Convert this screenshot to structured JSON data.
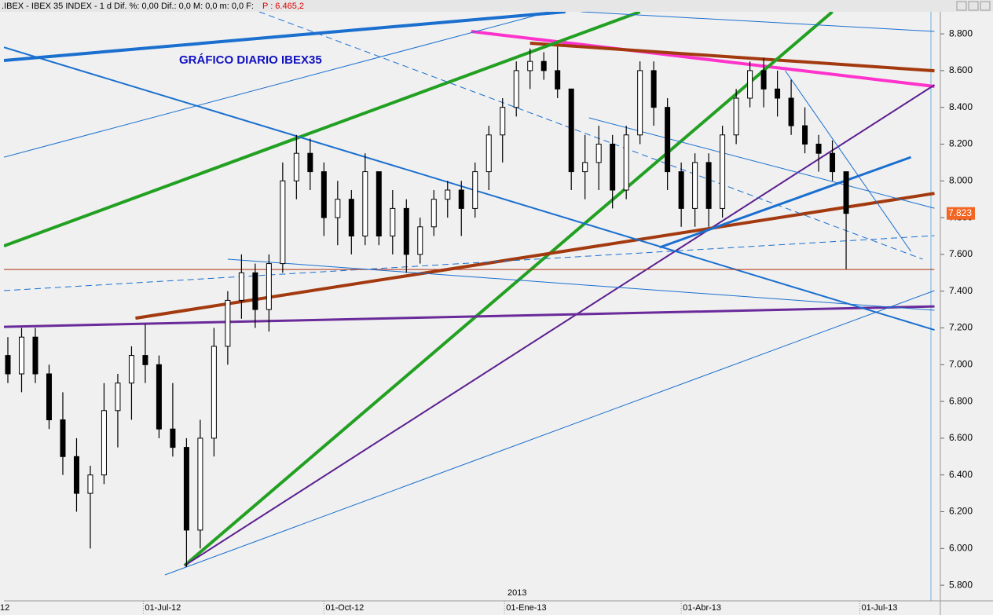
{
  "chart_data": {
    "type": "candlestick",
    "header": ".IBEX - IBEX 35 INDEX - 1 d Dif. %: 0,00 Dif.: 0,0 M: 0,0 m: 0,0 F:",
    "header_price": "P : 6.465,2",
    "title": "GRÁFICO DIARIO IBEX35",
    "year_label": "2013",
    "last_value_label": "7.823",
    "x": [
      "2012-04-23",
      "2012-04-30",
      "2012-05-07",
      "2012-05-14",
      "2012-05-21",
      "2012-05-28",
      "2012-06-04",
      "2012-06-11",
      "2012-06-18",
      "2012-06-25",
      "2012-07-02",
      "2012-07-09",
      "2012-07-16",
      "2012-07-23",
      "2012-07-30",
      "2012-08-06",
      "2012-08-13",
      "2012-08-20",
      "2012-08-27",
      "2012-09-03",
      "2012-09-10",
      "2012-09-17",
      "2012-09-24",
      "2012-10-01",
      "2012-10-08",
      "2012-10-15",
      "2012-10-22",
      "2012-10-29",
      "2012-11-05",
      "2012-11-12",
      "2012-11-19",
      "2012-11-26",
      "2012-12-03",
      "2012-12-10",
      "2012-12-17",
      "2012-12-24",
      "2012-12-31",
      "2013-01-07",
      "2013-01-14",
      "2013-01-21",
      "2013-01-28",
      "2013-02-04",
      "2013-02-11",
      "2013-02-18",
      "2013-02-25",
      "2013-03-04",
      "2013-03-11",
      "2013-03-18",
      "2013-03-25",
      "2013-04-01",
      "2013-04-08",
      "2013-04-15",
      "2013-04-22",
      "2013-04-29",
      "2013-05-06",
      "2013-05-13",
      "2013-05-20",
      "2013-05-27",
      "2013-06-03",
      "2013-06-10",
      "2013-06-17",
      "2013-06-24"
    ],
    "open": [
      7050,
      6950,
      7150,
      6950,
      6700,
      6500,
      6300,
      6400,
      6750,
      6900,
      7050,
      7000,
      6650,
      6550,
      6100,
      6600,
      7100,
      7350,
      7500,
      7300,
      7550,
      8000,
      8150,
      8050,
      7800,
      7900,
      7700,
      8050,
      7700,
      7850,
      7600,
      7750,
      7900,
      7950,
      7850,
      8050,
      8250,
      8400,
      8600,
      8650,
      8600,
      8500,
      8050,
      8100,
      8200,
      7950,
      8250,
      8600,
      8400,
      8050,
      7850,
      8100,
      7850,
      8250,
      8450,
      8600,
      8500,
      8450,
      8300,
      8200,
      8150,
      8050
    ],
    "high": [
      7150,
      7200,
      7200,
      7000,
      6850,
      6600,
      6450,
      6900,
      6950,
      7100,
      7220,
      7050,
      6900,
      6600,
      6700,
      7200,
      7400,
      7600,
      7550,
      7600,
      8100,
      8250,
      8230,
      8100,
      8000,
      7950,
      8150,
      8050,
      7950,
      7900,
      7800,
      7950,
      8000,
      8000,
      8100,
      8300,
      8450,
      8650,
      8720,
      8700,
      8730,
      8500,
      8250,
      8300,
      8250,
      8300,
      8650,
      8650,
      8450,
      8100,
      8150,
      8150,
      8300,
      8500,
      8650,
      8670,
      8600,
      8550,
      8400,
      8250,
      8220,
      8050
    ],
    "low": [
      6900,
      6850,
      6900,
      6650,
      6400,
      6200,
      6000,
      6350,
      6550,
      6700,
      6900,
      6600,
      6500,
      5900,
      6000,
      6500,
      7000,
      7250,
      7200,
      7180,
      7500,
      7900,
      7950,
      7700,
      7650,
      7600,
      7650,
      7650,
      7600,
      7500,
      7550,
      7700,
      7800,
      7700,
      7800,
      7950,
      8100,
      8350,
      8500,
      8550,
      8450,
      7950,
      7900,
      7950,
      7850,
      7900,
      8200,
      8300,
      7950,
      7750,
      7750,
      7750,
      7800,
      8200,
      8400,
      8400,
      8350,
      8250,
      8150,
      8050,
      8000,
      7520
    ],
    "close": [
      6950,
      7150,
      6950,
      6700,
      6500,
      6300,
      6400,
      6750,
      6900,
      7050,
      7000,
      6650,
      6550,
      6100,
      6600,
      7100,
      7350,
      7500,
      7300,
      7550,
      8000,
      8150,
      8050,
      7800,
      7900,
      7700,
      8050,
      7700,
      7850,
      7600,
      7750,
      7900,
      7950,
      7850,
      8050,
      8250,
      8400,
      8600,
      8650,
      8600,
      8500,
      8050,
      8100,
      8200,
      7950,
      8250,
      8600,
      8400,
      8050,
      7850,
      8100,
      7850,
      8250,
      8450,
      8600,
      8500,
      8450,
      8300,
      8200,
      8150,
      8050,
      7823
    ],
    "xlim": [
      "2012-04-21",
      "2013-08-11"
    ],
    "xticks": [
      {
        "value": "2012-04-01",
        "label": "12"
      },
      {
        "value": "2012-07-01",
        "label": "01-Jul-12"
      },
      {
        "value": "2012-10-01",
        "label": "01-Oct-12"
      },
      {
        "value": "2013-01-01",
        "label": "01-Ene-13"
      },
      {
        "value": "2013-04-01",
        "label": "01-Abr-13"
      },
      {
        "value": "2013-07-01",
        "label": "01-Jul-13"
      }
    ],
    "ylim": [
      5715,
      8920
    ],
    "yticks": [
      {
        "value": 5800,
        "label": "5.800"
      },
      {
        "value": 6000,
        "label": "6.000"
      },
      {
        "value": 6200,
        "label": "6.200"
      },
      {
        "value": 6400,
        "label": "6.400"
      },
      {
        "value": 6600,
        "label": "6.600"
      },
      {
        "value": 6800,
        "label": "6.800"
      },
      {
        "value": 7000,
        "label": "7.000"
      },
      {
        "value": 7200,
        "label": "7.200"
      },
      {
        "value": 7400,
        "label": "7.400"
      },
      {
        "value": 7600,
        "label": "7.600"
      },
      {
        "value": 7800,
        "label": "7.800"
      },
      {
        "value": 8000,
        "label": "8.000"
      },
      {
        "value": 8200,
        "label": "8.200"
      },
      {
        "value": 8400,
        "label": "8.400"
      },
      {
        "value": 8600,
        "label": "8.600"
      },
      {
        "value": 8800,
        "label": "8.800"
      }
    ],
    "trendlines": [
      {
        "x": [
          "2012-04-21",
          "2013-02-01"
        ],
        "y": [
          8655,
          8920
        ],
        "color": "#1a6fcf",
        "width": 4,
        "dashed": false
      },
      {
        "x": [
          "2012-12-15",
          "2013-08-08"
        ],
        "y": [
          8813,
          8514
        ],
        "color": "#ff33cc",
        "width": 4,
        "dashed": false
      },
      {
        "x": [
          "2013-01-14",
          "2013-08-08"
        ],
        "y": [
          8749,
          8599
        ],
        "color": "#a33a0f",
        "width": 4,
        "dashed": false
      },
      {
        "x": [
          "2012-04-21",
          "2013-03-11"
        ],
        "y": [
          7646,
          8920
        ],
        "color": "#22a022",
        "width": 4,
        "dashed": false
      },
      {
        "x": [
          "2012-07-22",
          "2013-06-17"
        ],
        "y": [
          5907,
          8920
        ],
        "color": "#22a022",
        "width": 4,
        "dashed": false
      },
      {
        "x": [
          "2012-07-22",
          "2013-08-08"
        ],
        "y": [
          5907,
          8522
        ],
        "color": "#5b1f8f",
        "width": 2,
        "dashed": false
      },
      {
        "x": [
          "2012-04-21",
          "2013-08-08"
        ],
        "y": [
          7206,
          7317
        ],
        "color": "#6a2a9a",
        "width": 3,
        "dashed": false
      },
      {
        "x": [
          "2012-06-27",
          "2013-08-08"
        ],
        "y": [
          7253,
          7932
        ],
        "color": "#a33a0f",
        "width": 4,
        "dashed": false
      },
      {
        "x": [
          "2012-04-21",
          "2013-08-08"
        ],
        "y": [
          8727,
          7189
        ],
        "color": "#1a6fcf",
        "width": 2,
        "dashed": false
      },
      {
        "x": [
          "2013-03-21",
          "2013-07-27"
        ],
        "y": [
          7638,
          8129
        ],
        "color": "#1a6fcf",
        "width": 3,
        "dashed": false
      },
      {
        "x": [
          "2012-04-21",
          "2013-01-24"
        ],
        "y": [
          8129,
          8920
        ],
        "color": "#1a6fcf",
        "width": 1,
        "dashed": false
      },
      {
        "x": [
          "2012-07-12",
          "2013-08-08"
        ],
        "y": [
          5856,
          7403
        ],
        "color": "#1a6fcf",
        "width": 1,
        "dashed": false
      },
      {
        "x": [
          "2012-04-21",
          "2013-08-08"
        ],
        "y": [
          7403,
          7702
        ],
        "color": "#1a6fcf",
        "width": 1,
        "dashed": true
      },
      {
        "x": [
          "2012-04-21",
          "2013-08-08"
        ],
        "y": [
          7518,
          7518
        ],
        "color": "#b03010",
        "width": 1,
        "dashed": false
      },
      {
        "x": [
          "2012-08-13",
          "2013-08-08"
        ],
        "y": [
          7574,
          7296
        ],
        "color": "#1a6fcf",
        "width": 1,
        "dashed": false
      },
      {
        "x": [
          "2012-08-29",
          "2013-08-02"
        ],
        "y": [
          8920,
          7574
        ],
        "color": "#1a6fcf",
        "width": 1,
        "dashed": true
      },
      {
        "x": [
          "2013-02-13",
          "2013-08-08"
        ],
        "y": [
          8343,
          7851
        ],
        "color": "#1a6fcf",
        "width": 1,
        "dashed": false
      },
      {
        "x": [
          "2013-05-24",
          "2013-07-27"
        ],
        "y": [
          8599,
          7616
        ],
        "color": "#1a6fcf",
        "width": 1,
        "dashed": false
      },
      {
        "x": [
          "2013-02-09",
          "2013-08-08"
        ],
        "y": [
          8920,
          8813
        ],
        "color": "#1a6fcf",
        "width": 1,
        "dashed": false
      }
    ]
  }
}
